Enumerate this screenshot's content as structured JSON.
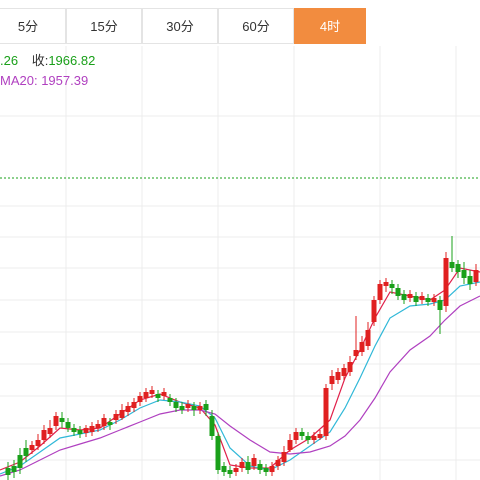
{
  "timeframe_tabs": [
    {
      "label": "5分",
      "active": false
    },
    {
      "label": "15分",
      "active": false
    },
    {
      "label": "30分",
      "active": false
    },
    {
      "label": "60分",
      "active": false
    },
    {
      "label": "4时",
      "active": true
    }
  ],
  "quote": {
    "partial_value": ".26",
    "close_label": "收:",
    "close_value": "1966.82",
    "ma_label": "MA20:",
    "ma_value": "1957.39"
  },
  "colors": {
    "up": "#e02020",
    "down": "#1aa01a",
    "ma_fast": "#e0204a",
    "ma_mid": "#30b8d8",
    "ma_slow": "#b040c0",
    "reference_line": "#1aa01a",
    "active_tab": "#f28c3f"
  }
}
